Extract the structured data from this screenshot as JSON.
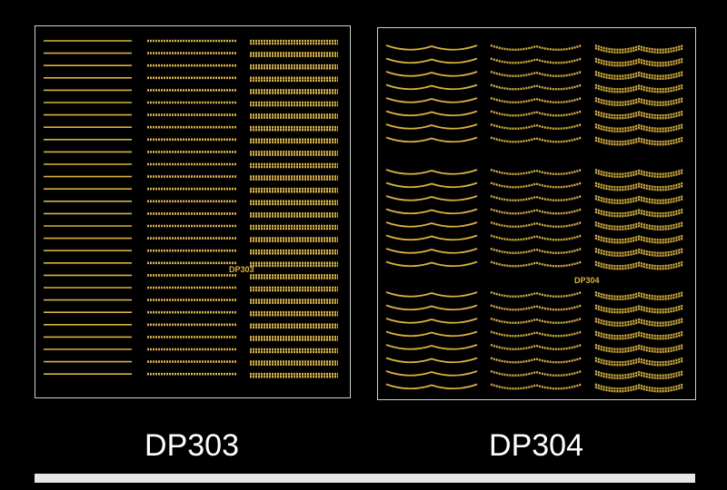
{
  "products": [
    {
      "label": "DP303",
      "sheet_code": "DP303"
    },
    {
      "label": "DP304",
      "sheet_code": "DP304"
    }
  ]
}
